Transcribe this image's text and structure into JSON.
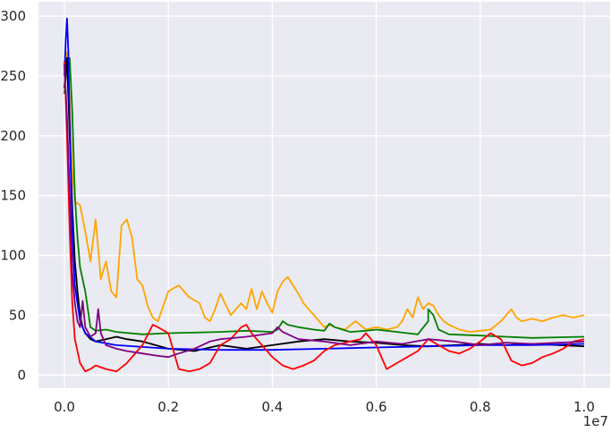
{
  "chart_data": {
    "type": "line",
    "title": "",
    "xlabel": "",
    "ylabel": "",
    "x_offset_label": "1e7",
    "xlim": [
      -0.05,
      1.05
    ],
    "ylim": [
      -11,
      312
    ],
    "xticks": [
      0.0,
      0.2,
      0.4,
      0.6,
      0.8,
      1.0
    ],
    "xtick_labels": [
      "0.0",
      "0.2",
      "0.4",
      "0.6",
      "0.8",
      "1.0"
    ],
    "yticks": [
      0,
      50,
      100,
      150,
      200,
      250,
      300
    ],
    "ytick_labels": [
      "0",
      "50",
      "100",
      "150",
      "200",
      "250",
      "300"
    ],
    "grid": true,
    "background": "#eaeaf2",
    "series": [
      {
        "color": "#ffa500",
        "x": [
          0.0,
          0.005,
          0.01,
          0.015,
          0.02,
          0.03,
          0.04,
          0.05,
          0.06,
          0.07,
          0.08,
          0.09,
          0.1,
          0.11,
          0.12,
          0.13,
          0.14,
          0.15,
          0.16,
          0.17,
          0.18,
          0.2,
          0.22,
          0.24,
          0.26,
          0.27,
          0.28,
          0.29,
          0.3,
          0.32,
          0.34,
          0.35,
          0.36,
          0.37,
          0.38,
          0.39,
          0.4,
          0.41,
          0.42,
          0.43,
          0.44,
          0.45,
          0.46,
          0.47,
          0.48,
          0.49,
          0.5,
          0.51,
          0.52,
          0.54,
          0.56,
          0.58,
          0.6,
          0.62,
          0.64,
          0.65,
          0.66,
          0.67,
          0.68,
          0.69,
          0.7,
          0.71,
          0.72,
          0.73,
          0.74,
          0.76,
          0.78,
          0.8,
          0.82,
          0.84,
          0.86,
          0.87,
          0.88,
          0.9,
          0.92,
          0.94,
          0.96,
          0.98,
          1.0
        ],
        "y": [
          258,
          270,
          230,
          170,
          145,
          142,
          120,
          95,
          130,
          80,
          95,
          70,
          65,
          125,
          130,
          115,
          80,
          75,
          58,
          48,
          45,
          70,
          75,
          65,
          60,
          48,
          45,
          55,
          68,
          50,
          60,
          55,
          72,
          55,
          70,
          60,
          52,
          70,
          78,
          82,
          75,
          68,
          60,
          55,
          50,
          45,
          40,
          42,
          40,
          38,
          45,
          38,
          40,
          38,
          40,
          45,
          55,
          48,
          65,
          55,
          60,
          58,
          50,
          45,
          42,
          38,
          36,
          37,
          38,
          45,
          55,
          48,
          45,
          47,
          45,
          48,
          50,
          48,
          50
        ]
      },
      {
        "color": "#008000",
        "x": [
          0.0,
          0.005,
          0.01,
          0.015,
          0.02,
          0.025,
          0.03,
          0.04,
          0.05,
          0.06,
          0.08,
          0.1,
          0.15,
          0.2,
          0.3,
          0.35,
          0.4,
          0.41,
          0.42,
          0.43,
          0.45,
          0.48,
          0.5,
          0.51,
          0.52,
          0.55,
          0.58,
          0.6,
          0.62,
          0.64,
          0.66,
          0.68,
          0.7,
          0.7,
          0.71,
          0.72,
          0.74,
          0.8,
          0.85,
          0.9,
          1.0
        ],
        "y": [
          235,
          260,
          265,
          220,
          150,
          115,
          90,
          70,
          40,
          37,
          38,
          36,
          34,
          35,
          36,
          37,
          36,
          38,
          45,
          42,
          40,
          38,
          37,
          43,
          40,
          36,
          37,
          38,
          37,
          36,
          35,
          34,
          45,
          55,
          50,
          38,
          34,
          33,
          32,
          31,
          32
        ]
      },
      {
        "color": "#000000",
        "x": [
          0.0,
          0.005,
          0.01,
          0.015,
          0.02,
          0.025,
          0.03,
          0.035,
          0.04,
          0.05,
          0.06,
          0.08,
          0.1,
          0.12,
          0.15,
          0.2,
          0.25,
          0.3,
          0.35,
          0.4,
          0.45,
          0.5,
          0.55,
          0.6,
          0.65,
          0.7,
          0.75,
          0.8,
          0.85,
          0.9,
          0.95,
          1.0
        ],
        "y": [
          240,
          265,
          200,
          140,
          95,
          70,
          50,
          40,
          35,
          30,
          28,
          30,
          32,
          30,
          28,
          22,
          20,
          25,
          22,
          25,
          28,
          30,
          28,
          27,
          25,
          24,
          25,
          26,
          25,
          26,
          25,
          24
        ]
      },
      {
        "color": "#0000ff",
        "x": [
          0.0,
          0.0025,
          0.005,
          0.0075,
          0.01,
          0.015,
          0.02,
          0.03,
          0.04,
          0.06,
          0.1,
          0.2,
          0.3,
          0.4,
          0.5,
          0.6,
          0.7,
          0.8,
          0.9,
          1.0
        ],
        "y": [
          250,
          280,
          298,
          270,
          210,
          120,
          75,
          45,
          35,
          28,
          25,
          22,
          21,
          21,
          22,
          23,
          24,
          25,
          25,
          26
        ]
      },
      {
        "color": "#ff0000",
        "x": [
          0.0,
          0.005,
          0.01,
          0.015,
          0.02,
          0.03,
          0.04,
          0.05,
          0.06,
          0.08,
          0.1,
          0.12,
          0.15,
          0.17,
          0.18,
          0.2,
          0.22,
          0.24,
          0.26,
          0.28,
          0.3,
          0.32,
          0.34,
          0.35,
          0.36,
          0.38,
          0.4,
          0.42,
          0.44,
          0.46,
          0.48,
          0.5,
          0.52,
          0.55,
          0.57,
          0.58,
          0.6,
          0.62,
          0.64,
          0.66,
          0.68,
          0.7,
          0.72,
          0.74,
          0.76,
          0.78,
          0.8,
          0.82,
          0.84,
          0.86,
          0.88,
          0.9,
          0.92,
          0.94,
          0.96,
          0.98,
          1.0
        ],
        "y": [
          262,
          200,
          120,
          60,
          30,
          10,
          3,
          5,
          8,
          5,
          3,
          10,
          25,
          42,
          40,
          35,
          5,
          3,
          5,
          10,
          25,
          30,
          40,
          42,
          35,
          25,
          15,
          8,
          5,
          8,
          12,
          20,
          25,
          28,
          30,
          35,
          25,
          5,
          10,
          15,
          20,
          30,
          25,
          20,
          18,
          22,
          28,
          35,
          30,
          12,
          8,
          10,
          15,
          18,
          22,
          28,
          30
        ]
      },
      {
        "color": "#800080",
        "x": [
          0.0,
          0.005,
          0.01,
          0.015,
          0.02,
          0.025,
          0.03,
          0.035,
          0.04,
          0.05,
          0.06,
          0.065,
          0.07,
          0.08,
          0.1,
          0.12,
          0.15,
          0.18,
          0.2,
          0.22,
          0.25,
          0.28,
          0.3,
          0.35,
          0.4,
          0.41,
          0.42,
          0.45,
          0.5,
          0.55,
          0.6,
          0.65,
          0.7,
          0.75,
          0.8,
          0.85,
          0.9,
          0.95,
          1.0
        ],
        "y": [
          260,
          215,
          150,
          85,
          60,
          45,
          40,
          62,
          40,
          32,
          35,
          55,
          35,
          25,
          22,
          20,
          18,
          16,
          15,
          18,
          22,
          28,
          30,
          32,
          35,
          40,
          36,
          30,
          28,
          25,
          28,
          26,
          30,
          28,
          25,
          27,
          26,
          27,
          28
        ]
      }
    ]
  }
}
